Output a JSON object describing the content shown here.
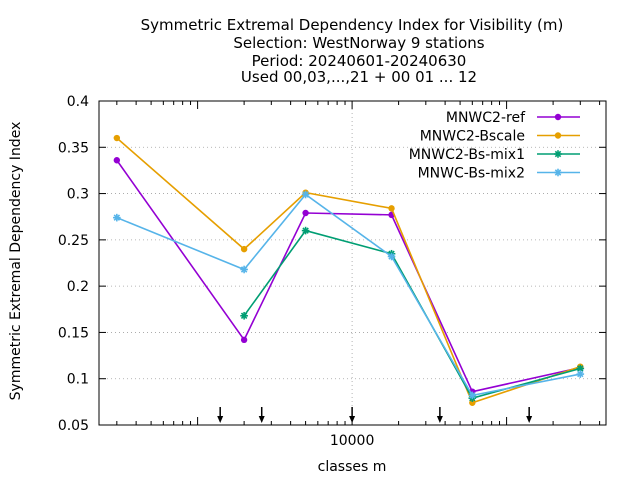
{
  "chart_data": {
    "type": "line",
    "title_lines": [
      "Symmetric Extremal Dependency Index  for Visibility (m)",
      "Selection: WestNorway      9 stations",
      "Period: 20240601-20240630",
      "Used 00,03,...,21 + 00 01 ... 12"
    ],
    "xlabel": "classes m",
    "ylabel": "Symmetric Extremal Dependency Index",
    "x_scale": "log",
    "x_tick_labels": [
      "10000"
    ],
    "x_tick_values": [
      10000
    ],
    "ylim": [
      0.05,
      0.4
    ],
    "y_ticks": [
      0.05,
      0.1,
      0.15,
      0.2,
      0.25,
      0.3,
      0.35,
      0.4
    ],
    "y_tick_labels": [
      "0.05",
      "0.1",
      "0.15",
      "0.2",
      "0.25",
      "0.3",
      "0.35",
      "0.4"
    ],
    "grid": true,
    "legend_position": "top-right",
    "arrow_markers_x": [
      1400,
      2600,
      10000,
      37000,
      140000
    ],
    "series": [
      {
        "name": "MNWC2-ref",
        "color": "#9400d3",
        "marker": "circle",
        "points": [
          [
            300,
            0.336
          ],
          [
            2000,
            0.142
          ],
          [
            5000,
            0.279
          ],
          [
            18000,
            0.277
          ],
          [
            60000,
            0.086
          ],
          [
            300000,
            0.112
          ]
        ]
      },
      {
        "name": "MNWC2-Bscale",
        "color": "#e69f00",
        "marker": "circle",
        "points": [
          [
            300,
            0.36
          ],
          [
            2000,
            0.24
          ],
          [
            5000,
            0.301
          ],
          [
            18000,
            0.284
          ],
          [
            60000,
            0.074
          ],
          [
            300000,
            0.113
          ]
        ]
      },
      {
        "name": "MNWC2-Bs-mix1",
        "color": "#009e73",
        "marker": "star",
        "points": [
          [
            2000,
            0.168
          ],
          [
            5000,
            0.26
          ],
          [
            18000,
            0.235
          ],
          [
            60000,
            0.079
          ],
          [
            300000,
            0.111
          ]
        ]
      },
      {
        "name": "MNWC-Bs-mix2",
        "color": "#56b4e9",
        "marker": "star",
        "points": [
          [
            300,
            0.274
          ],
          [
            2000,
            0.218
          ],
          [
            5000,
            0.299
          ],
          [
            18000,
            0.232
          ],
          [
            60000,
            0.082
          ],
          [
            300000,
            0.105
          ]
        ]
      }
    ]
  }
}
